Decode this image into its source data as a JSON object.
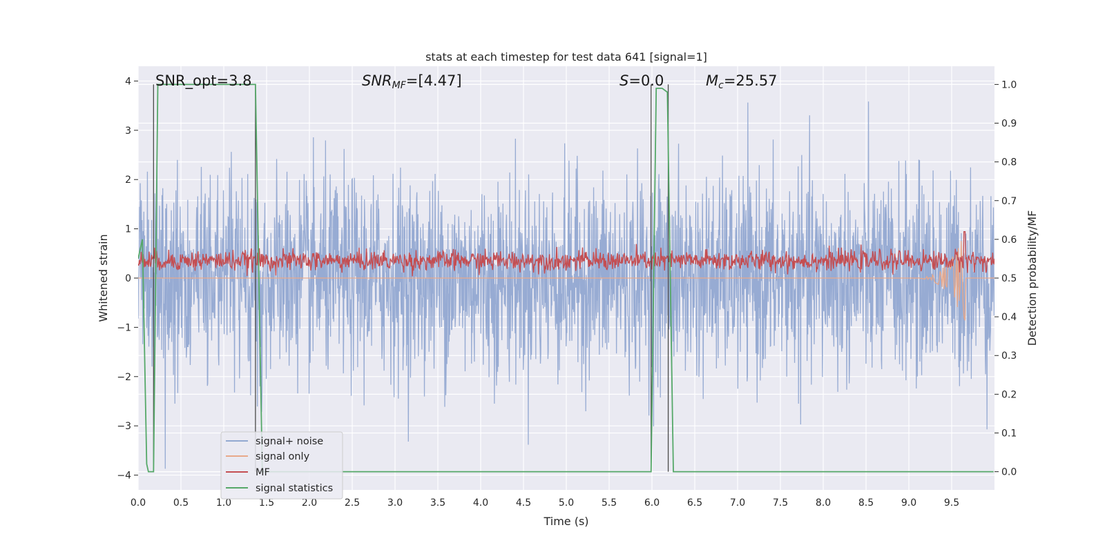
{
  "chart_data": {
    "type": "line",
    "title": "stats at each timestep for test data 641 [signal=1]",
    "xlabel": "Time (s)",
    "ylabel": "Whitened strain",
    "y2label": "Detection probability/MF",
    "xlim": [
      0,
      10
    ],
    "ylim": [
      -4.3,
      4.3
    ],
    "y2lim": [
      -0.047,
      1.047
    ],
    "x_ticks": [
      0.0,
      0.5,
      1.0,
      1.5,
      2.0,
      2.5,
      3.0,
      3.5,
      4.0,
      4.5,
      5.0,
      5.5,
      6.0,
      6.5,
      7.0,
      7.5,
      8.0,
      8.5,
      9.0,
      9.5
    ],
    "x_tick_labels": [
      "0.0",
      "0.5",
      "1.0",
      "1.5",
      "2.0",
      "2.5",
      "3.0",
      "3.5",
      "4.0",
      "4.5",
      "5.0",
      "5.5",
      "6.0",
      "6.5",
      "7.0",
      "7.5",
      "8.0",
      "8.5",
      "9.0",
      "9.5"
    ],
    "y_ticks": [
      -4,
      -3,
      -2,
      -1,
      0,
      1,
      2,
      3,
      4
    ],
    "y_tick_labels": [
      "−4",
      "−3",
      "−2",
      "−1",
      "0",
      "1",
      "2",
      "3",
      "4"
    ],
    "y2_ticks": [
      0.0,
      0.1,
      0.2,
      0.3,
      0.4,
      0.5,
      0.6,
      0.7,
      0.8,
      0.9,
      1.0
    ],
    "y2_tick_labels": [
      "0.0",
      "0.1",
      "0.2",
      "0.3",
      "0.4",
      "0.5",
      "0.6",
      "0.7",
      "0.8",
      "0.9",
      "1.0"
    ],
    "grid": true,
    "legend_position": "lower-left",
    "annotations": {
      "snr_opt": "SNR_opt=3.8",
      "snr_mf_base": "SNR",
      "snr_mf_sub": "MF",
      "snr_mf_value": "=[4.47]",
      "s_base": "S",
      "s_value": "=0.0",
      "mc_base": "M",
      "mc_sub": "c",
      "mc_value": "=25.57"
    },
    "series": [
      {
        "name": "signal+ noise",
        "color": "#92a8d1",
        "axis": "left",
        "style": "dense noise, approx. range -4.0 to 4.0",
        "noise_std": 1.0
      },
      {
        "name": "signal only",
        "color": "#e8a88a",
        "axis": "left",
        "style": "chirp, visible from about 9.0 s, peaks near 9.65 s",
        "chirp_start": 9.0,
        "chirp_end": 9.66,
        "chirp_peak": 0.95
      },
      {
        "name": "MF",
        "color": "#c44e52",
        "axis": "right",
        "style": "noisy band around 0.52-0.56",
        "mean": 0.545,
        "peak_time": 9.65,
        "peak_value": 0.62
      },
      {
        "name": "signal statistics",
        "color": "#55a868",
        "axis": "right",
        "x": [
          0.0,
          0.05,
          0.1,
          0.12,
          0.18,
          0.23,
          0.25,
          0.3,
          1.37,
          1.45,
          1.5,
          5.99,
          6.05,
          6.12,
          6.18,
          6.25,
          9.99
        ],
        "values": [
          0.55,
          0.6,
          0.02,
          0.0,
          0.0,
          1.0,
          1.0,
          1.0,
          1.0,
          0.0,
          0.0,
          0.0,
          0.99,
          0.99,
          0.98,
          0.0,
          0.0
        ]
      }
    ],
    "vlines": [
      0.18,
      1.37,
      5.99,
      6.19
    ]
  }
}
